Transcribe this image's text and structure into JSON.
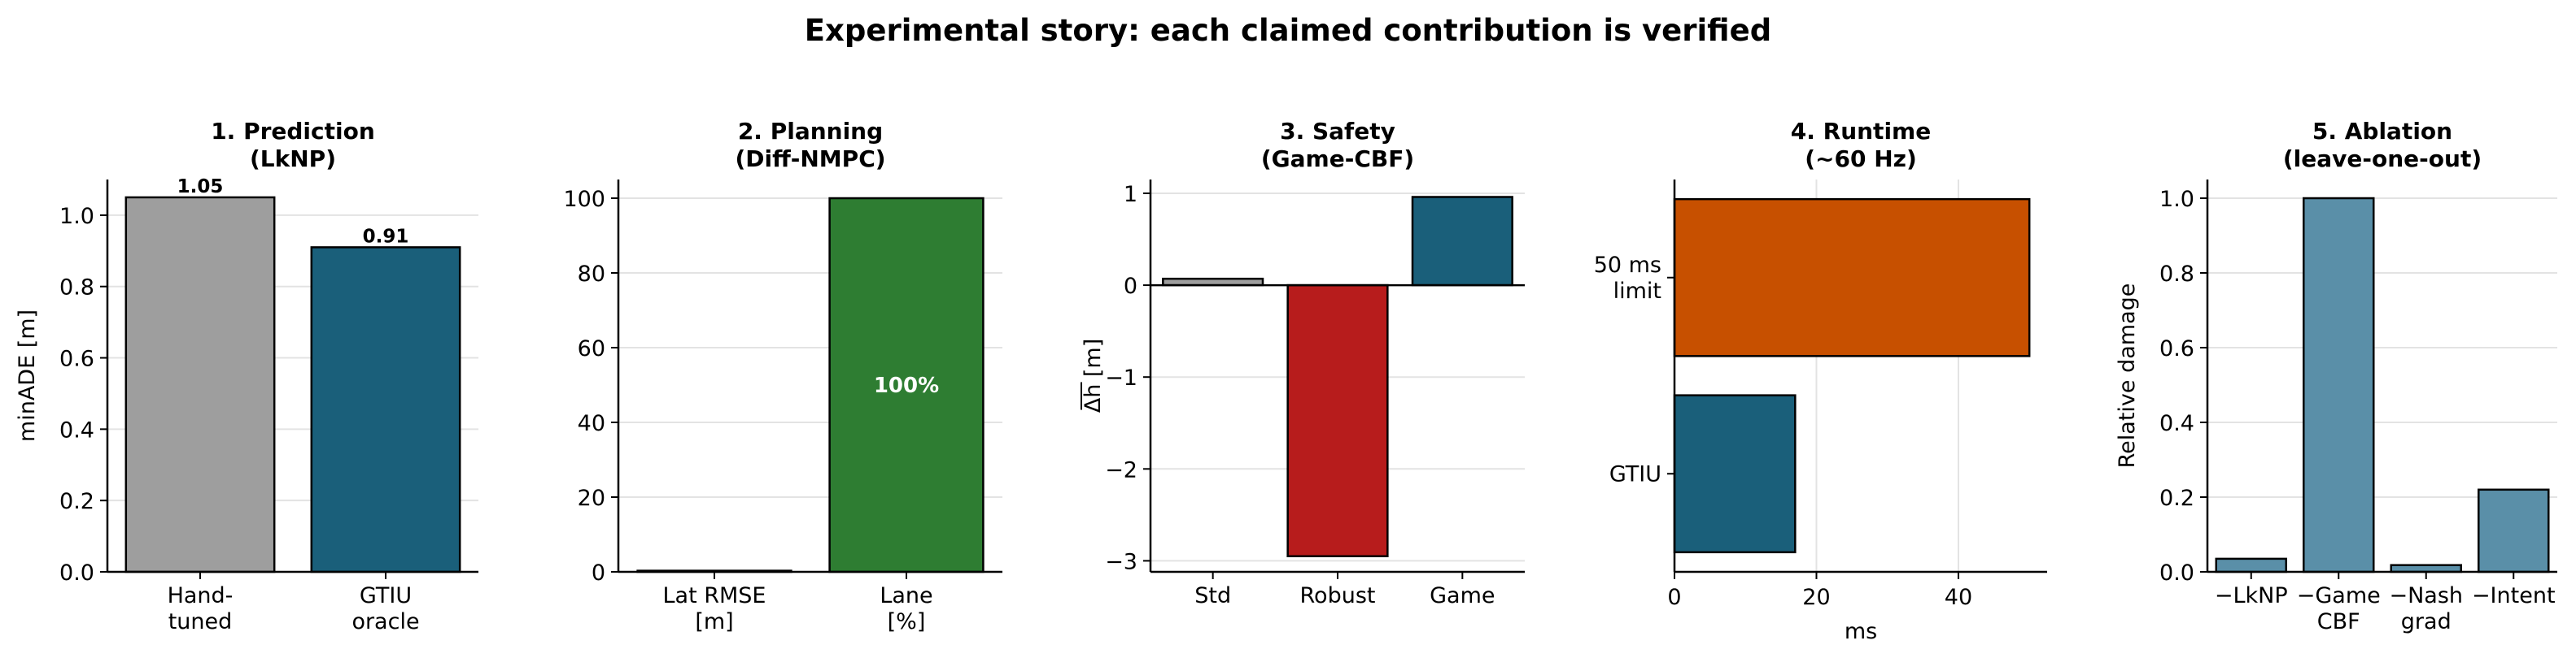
{
  "figure": {
    "suptitle": "Experimental story: each claimed contribution is verified"
  },
  "chart_data": [
    {
      "type": "bar",
      "title": "1. Prediction\n(LkNP)",
      "categories": [
        "Hand-\ntuned",
        "GTIU\noracle"
      ],
      "values": [
        1.05,
        0.91
      ],
      "data_labels": [
        "1.05",
        "0.91"
      ],
      "colors": [
        "#9e9e9e",
        "#1a5f7a"
      ],
      "xlabel": "",
      "ylabel": "minADE [m]",
      "ylim": [
        0,
        1.1
      ],
      "yticks": [
        0.0,
        0.2,
        0.4,
        0.6,
        0.8,
        1.0
      ],
      "ytick_labels": [
        "0.0",
        "0.2",
        "0.4",
        "0.6",
        "0.8",
        "1.0"
      ],
      "grid": "y"
    },
    {
      "type": "bar",
      "title": "2. Planning\n(Diff-NMPC)",
      "categories": [
        "Lat RMSE\n[m]",
        "Lane\n[%]"
      ],
      "values": [
        0.3,
        100
      ],
      "data_labels": [
        "",
        "100%"
      ],
      "colors": [
        "#1a5f7a",
        "#2e7d32"
      ],
      "xlabel": "",
      "ylabel": "",
      "ylim": [
        0,
        105
      ],
      "yticks": [
        0,
        20,
        40,
        60,
        80,
        100
      ],
      "ytick_labels": [
        "0",
        "20",
        "40",
        "60",
        "80",
        "100"
      ],
      "grid": "y"
    },
    {
      "type": "bar",
      "title": "3. Safety\n(Game-CBF)",
      "categories": [
        "Std",
        "Robust",
        "Game"
      ],
      "values": [
        0.07,
        -2.95,
        0.96
      ],
      "colors": [
        "#9e9e9e",
        "#b71c1c",
        "#1a5f7a"
      ],
      "xlabel": "",
      "ylabel": "Δh [m]",
      "ylim": [
        -3.12,
        1.15
      ],
      "yticks": [
        -3,
        -2,
        -1,
        0,
        1
      ],
      "ytick_labels": [
        "−3",
        "−2",
        "−1",
        "0",
        "1"
      ],
      "grid": "y"
    },
    {
      "type": "bar",
      "orientation": "horizontal",
      "title": "4. Runtime\n(~60 Hz)",
      "categories": [
        "GTIU",
        "50 ms\nlimit"
      ],
      "values": [
        17,
        50
      ],
      "colors": [
        "#1a5f7a",
        "#c75000"
      ],
      "xlabel": "ms",
      "ylabel": "",
      "xlim": [
        0,
        52.5
      ],
      "xticks": [
        0,
        20,
        40
      ],
      "xtick_labels": [
        "0",
        "20",
        "40"
      ],
      "grid": "x"
    },
    {
      "type": "bar",
      "title": "5. Ablation\n(leave-one-out)",
      "categories": [
        "−LkNP",
        "−Game\nCBF",
        "−Nash\ngrad",
        "−Intent"
      ],
      "values": [
        0.035,
        1.0,
        0.018,
        0.22
      ],
      "colors": [
        "#5a8fa8",
        "#5a8fa8",
        "#5a8fa8",
        "#5a8fa8"
      ],
      "xlabel": "",
      "ylabel": "Relative damage",
      "ylim": [
        0,
        1.05
      ],
      "yticks": [
        0.0,
        0.2,
        0.4,
        0.6,
        0.8,
        1.0
      ],
      "ytick_labels": [
        "0.0",
        "0.2",
        "0.4",
        "0.6",
        "0.8",
        "1.0"
      ],
      "grid": "y"
    }
  ]
}
